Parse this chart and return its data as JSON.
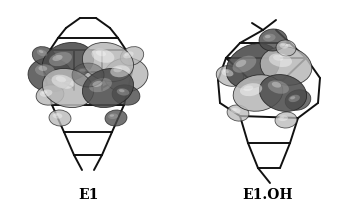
{
  "label_left": "E1",
  "label_right": "E1.OH",
  "label_fontsize": 10,
  "label_fontweight": "bold",
  "bg_color": "#ffffff",
  "fig_width": 3.62,
  "fig_height": 2.08,
  "dpi": 100,
  "bond_lw": 1.4,
  "dark_lobe": "#505050",
  "light_lobe": "#b0b0b0",
  "mid_lobe": "#888888"
}
